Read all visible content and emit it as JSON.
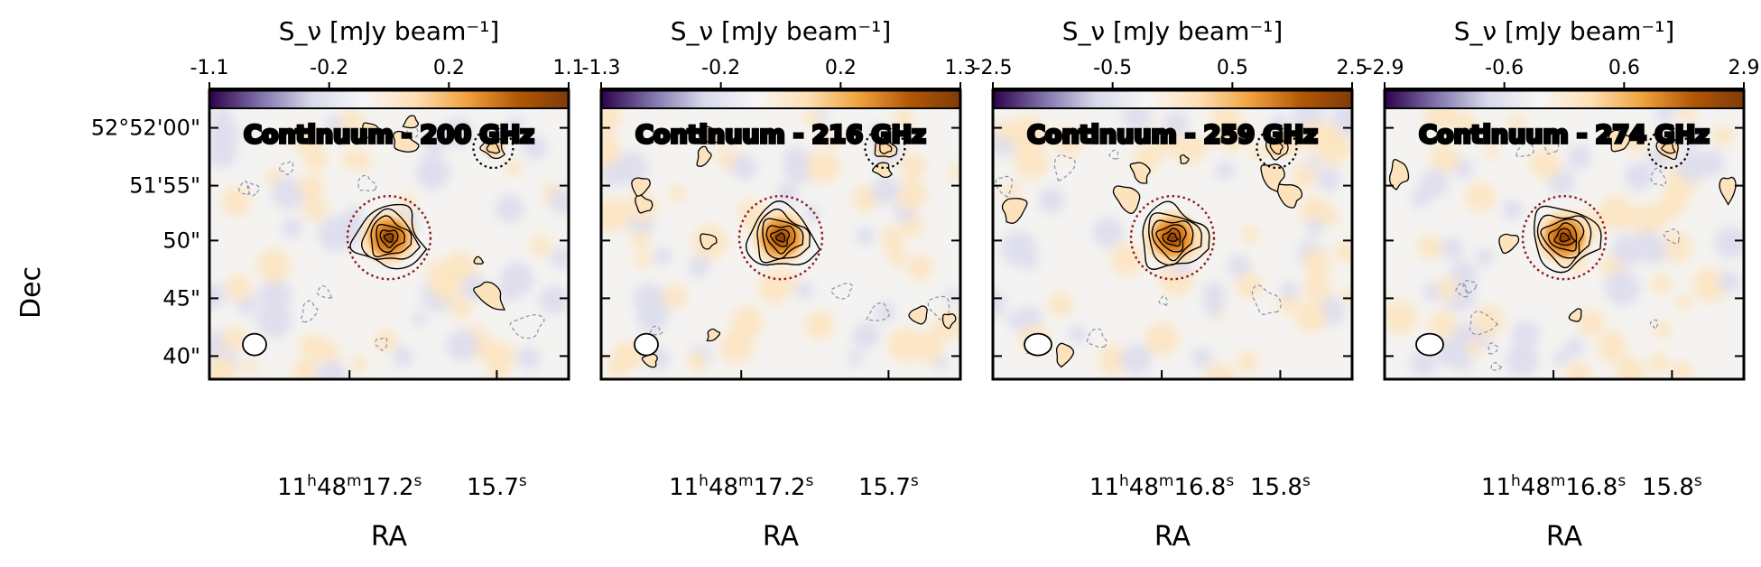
{
  "figure": {
    "y_axis_label": "Dec",
    "x_axis_label": "RA",
    "dec_tick_labels": [
      "52°52'00\"",
      "51'55\"",
      "50\"",
      "45\"",
      "40\""
    ]
  },
  "chart_data": [
    {
      "type": "heatmap",
      "title": "Continuum - 200 GHz",
      "colorbar_label": "S_ν [mJy beam⁻¹]",
      "colorbar_ticks": [
        "-1.1",
        "-0.2",
        "0.2",
        "1.1"
      ],
      "colorbar_range": [
        -1.1,
        1.1
      ],
      "xlabel": "RA",
      "ylabel": "Dec",
      "ra_ticks": [
        {
          "label_parts": [
            "11",
            "h",
            "48",
            "m",
            "17.2",
            "s"
          ]
        },
        {
          "label_parts": [
            "15.7",
            "s"
          ]
        }
      ],
      "dec_ticks": [
        "52°52'00\"",
        "51'55\"",
        "50\"",
        "45\"",
        "40\""
      ],
      "source_peak": 1.1,
      "companion": true
    },
    {
      "type": "heatmap",
      "title": "Continuum - 216 GHz",
      "colorbar_label": "S_ν [mJy beam⁻¹]",
      "colorbar_ticks": [
        "-1.3",
        "-0.2",
        "0.2",
        "1.3"
      ],
      "colorbar_range": [
        -1.3,
        1.3
      ],
      "xlabel": "RA",
      "ylabel": "Dec",
      "ra_ticks": [
        {
          "label_parts": [
            "11",
            "h",
            "48",
            "m",
            "17.2",
            "s"
          ]
        },
        {
          "label_parts": [
            "15.7",
            "s"
          ]
        }
      ],
      "dec_ticks": [
        "52°52'00\"",
        "51'55\"",
        "50\"",
        "45\"",
        "40\""
      ],
      "source_peak": 1.3,
      "companion": true
    },
    {
      "type": "heatmap",
      "title": "Continuum - 259 GHz",
      "colorbar_label": "S_ν [mJy beam⁻¹]",
      "colorbar_ticks": [
        "-2.5",
        "-0.5",
        "0.5",
        "2.5"
      ],
      "colorbar_range": [
        -2.5,
        2.5
      ],
      "xlabel": "RA",
      "ylabel": "Dec",
      "ra_ticks": [
        {
          "label_parts": [
            "11",
            "h",
            "48",
            "m",
            "16.8",
            "s"
          ]
        },
        {
          "label_parts": [
            "15.8",
            "s"
          ]
        }
      ],
      "dec_ticks": [
        "52°52'00\"",
        "51'55\"",
        "50\"",
        "45\"",
        "40\""
      ],
      "source_peak": 2.5,
      "companion": true
    },
    {
      "type": "heatmap",
      "title": "Continuum - 274 GHz",
      "colorbar_label": "S_ν [mJy beam⁻¹]",
      "colorbar_ticks": [
        "-2.9",
        "-0.6",
        "0.6",
        "2.9"
      ],
      "colorbar_range": [
        -2.9,
        2.9
      ],
      "xlabel": "RA",
      "ylabel": "Dec",
      "ra_ticks": [
        {
          "label_parts": [
            "11",
            "h",
            "48",
            "m",
            "16.8",
            "s"
          ]
        },
        {
          "label_parts": [
            "15.8",
            "s"
          ]
        }
      ],
      "dec_ticks": [
        "52°52'00\"",
        "51'55\"",
        "50\"",
        "45\"",
        "40\""
      ],
      "source_peak": 2.9,
      "companion": true
    }
  ],
  "colors": {
    "colormap": [
      "#2d004b",
      "#8073ac",
      "#d8daeb",
      "#f7f7f7",
      "#fee0b6",
      "#f1a340",
      "#b35806",
      "#7f3b08"
    ],
    "source_circle": "#8b1a1a",
    "negative_contour": "#8890a8",
    "positive_contour": "#000000"
  }
}
